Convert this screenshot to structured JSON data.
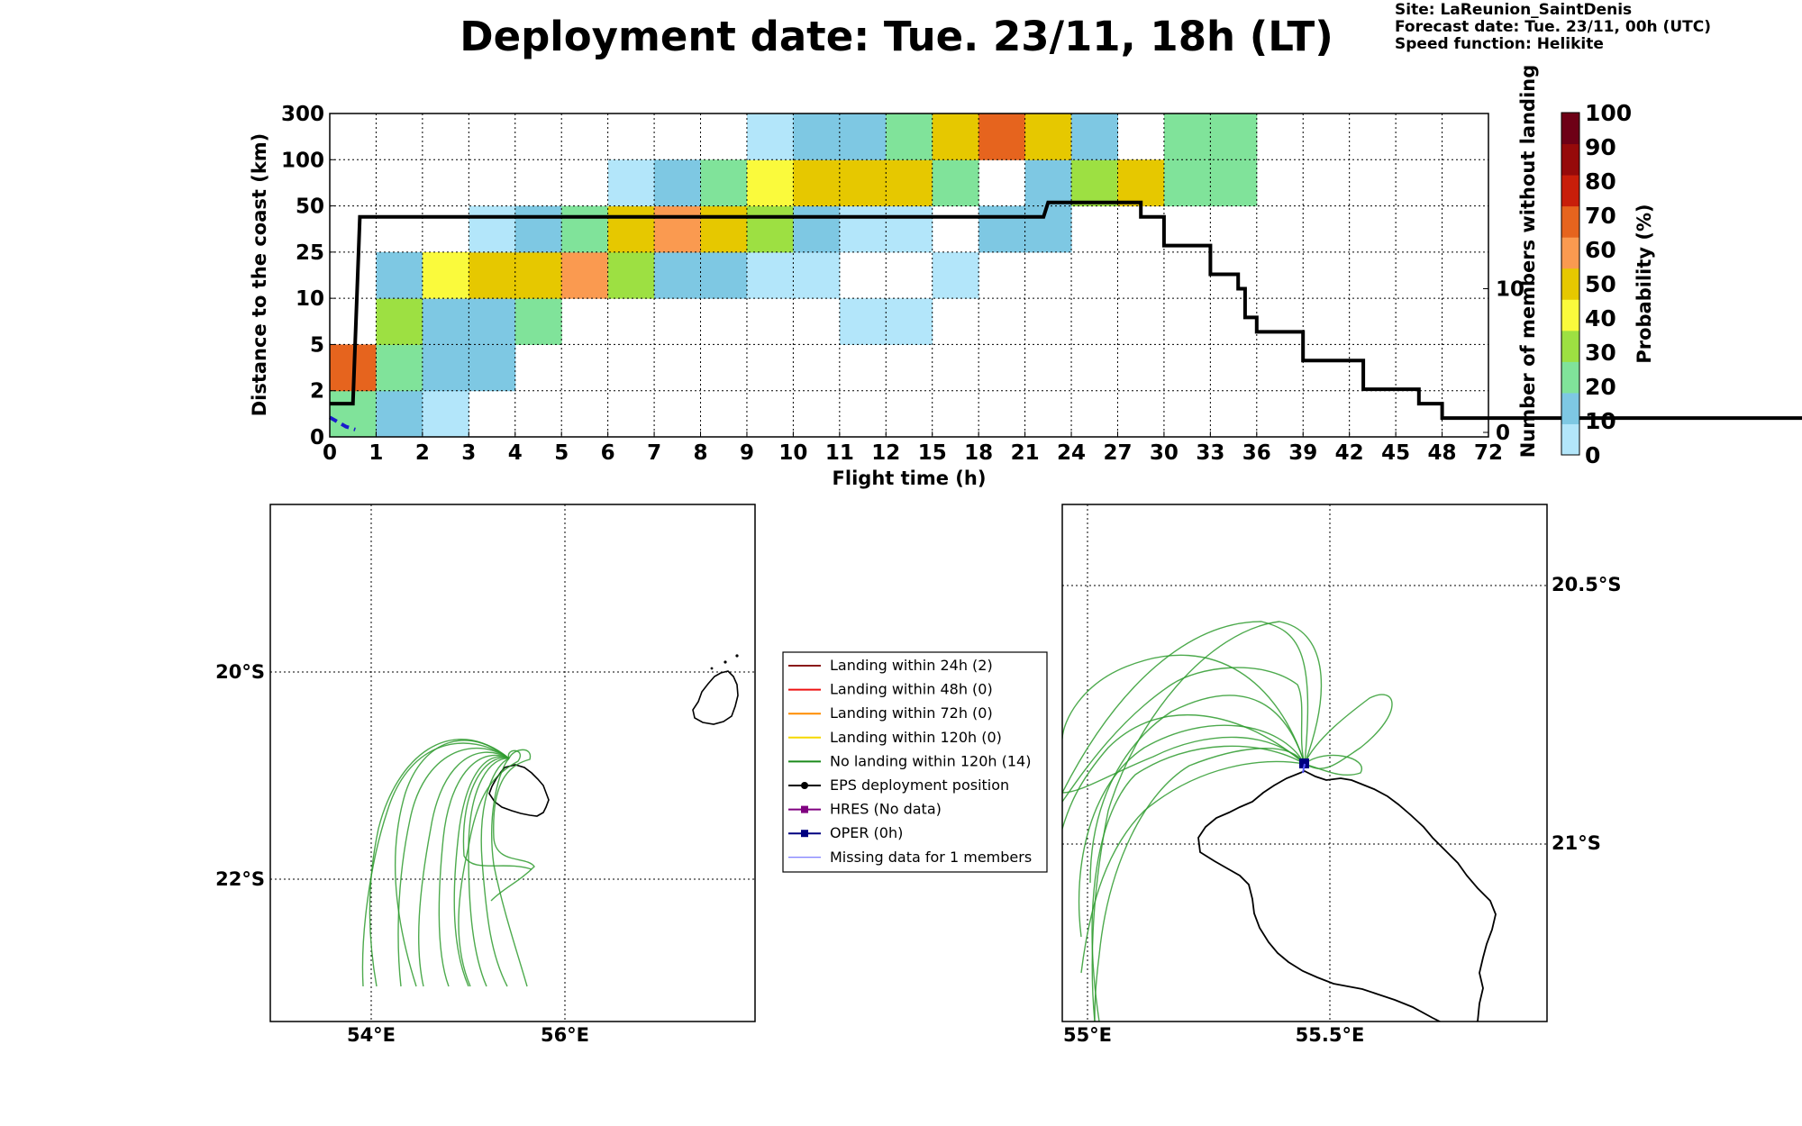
{
  "title": "Deployment date: Tue. 23/11, 18h (LT)",
  "meta": {
    "site": "Site: LaReunion_SaintDenis",
    "forecast": "Forecast date: Tue. 23/11, 00h (UTC)",
    "speed": "Speed function: Helikite"
  },
  "chart_data": [
    {
      "type": "heatmap",
      "xlabel": "Flight time (h)",
      "ylabel": "Distance to the coast (km)",
      "y2label": "Number of members without landing",
      "x_ticks": [
        "0",
        "1",
        "2",
        "3",
        "4",
        "5",
        "6",
        "7",
        "8",
        "9",
        "10",
        "11",
        "12",
        "15",
        "18",
        "21",
        "24",
        "27",
        "30",
        "33",
        "36",
        "39",
        "42",
        "45",
        "48",
        "72"
      ],
      "y_ticks": [
        "0",
        "2",
        "5",
        "10",
        "25",
        "50",
        "100",
        "300"
      ],
      "y2_ticks": [
        "0",
        "10"
      ],
      "y2_range": [
        0,
        20
      ],
      "grid": true,
      "colorbar": {
        "label": "Probability (%)",
        "ticks": [
          "0",
          "10",
          "20",
          "30",
          "40",
          "50",
          "60",
          "70",
          "80",
          "90",
          "100"
        ],
        "colors": [
          "#b3e6fa",
          "#7ec8e3",
          "#80e39a",
          "#9de042",
          "#fafa3c",
          "#e6c800",
          "#fa9a50",
          "#e6641e",
          "#c81e0a",
          "#960a0a",
          "#6e0016"
        ]
      },
      "cells": [
        {
          "x": 0,
          "y": 0,
          "v": 20
        },
        {
          "x": 1,
          "y": 0,
          "v": 10
        },
        {
          "x": 2,
          "y": 0,
          "v": 0
        },
        {
          "x": 0,
          "y": 1,
          "v": 70
        },
        {
          "x": 1,
          "y": 1,
          "v": 20
        },
        {
          "x": 2,
          "y": 1,
          "v": 10
        },
        {
          "x": 3,
          "y": 1,
          "v": 10
        },
        {
          "x": 1,
          "y": 2,
          "v": 30
        },
        {
          "x": 2,
          "y": 2,
          "v": 10
        },
        {
          "x": 3,
          "y": 2,
          "v": 10
        },
        {
          "x": 4,
          "y": 2,
          "v": 20
        },
        {
          "x": 11,
          "y": 2,
          "v": 0
        },
        {
          "x": 12,
          "y": 2,
          "v": 0
        },
        {
          "x": 1,
          "y": 3,
          "v": 10
        },
        {
          "x": 2,
          "y": 3,
          "v": 40
        },
        {
          "x": 3,
          "y": 3,
          "v": 50
        },
        {
          "x": 4,
          "y": 3,
          "v": 50
        },
        {
          "x": 5,
          "y": 3,
          "v": 60
        },
        {
          "x": 6,
          "y": 3,
          "v": 30
        },
        {
          "x": 7,
          "y": 3,
          "v": 10
        },
        {
          "x": 8,
          "y": 3,
          "v": 10
        },
        {
          "x": 9,
          "y": 3,
          "v": 0
        },
        {
          "x": 10,
          "y": 3,
          "v": 0
        },
        {
          "x": 13,
          "y": 3,
          "v": 0
        },
        {
          "x": 3,
          "y": 4,
          "v": 0
        },
        {
          "x": 4,
          "y": 4,
          "v": 10
        },
        {
          "x": 5,
          "y": 4,
          "v": 20
        },
        {
          "x": 6,
          "y": 4,
          "v": 50
        },
        {
          "x": 7,
          "y": 4,
          "v": 60
        },
        {
          "x": 8,
          "y": 4,
          "v": 50
        },
        {
          "x": 9,
          "y": 4,
          "v": 30
        },
        {
          "x": 10,
          "y": 4,
          "v": 10
        },
        {
          "x": 11,
          "y": 4,
          "v": 0
        },
        {
          "x": 12,
          "y": 4,
          "v": 0
        },
        {
          "x": 14,
          "y": 4,
          "v": 10
        },
        {
          "x": 15,
          "y": 4,
          "v": 10
        },
        {
          "x": 6,
          "y": 5,
          "v": 0
        },
        {
          "x": 7,
          "y": 5,
          "v": 10
        },
        {
          "x": 8,
          "y": 5,
          "v": 20
        },
        {
          "x": 9,
          "y": 5,
          "v": 40
        },
        {
          "x": 10,
          "y": 5,
          "v": 50
        },
        {
          "x": 11,
          "y": 5,
          "v": 50
        },
        {
          "x": 12,
          "y": 5,
          "v": 50
        },
        {
          "x": 13,
          "y": 5,
          "v": 20
        },
        {
          "x": 15,
          "y": 5,
          "v": 10
        },
        {
          "x": 16,
          "y": 5,
          "v": 30
        },
        {
          "x": 17,
          "y": 5,
          "v": 50
        },
        {
          "x": 18,
          "y": 5,
          "v": 20
        },
        {
          "x": 19,
          "y": 5,
          "v": 20
        },
        {
          "x": 9,
          "y": 6,
          "v": 0
        },
        {
          "x": 10,
          "y": 6,
          "v": 10
        },
        {
          "x": 11,
          "y": 6,
          "v": 10
        },
        {
          "x": 12,
          "y": 6,
          "v": 20
        },
        {
          "x": 13,
          "y": 6,
          "v": 50
        },
        {
          "x": 14,
          "y": 6,
          "v": 70
        },
        {
          "x": 15,
          "y": 6,
          "v": 50
        },
        {
          "x": 16,
          "y": 6,
          "v": 10
        },
        {
          "x": 18,
          "y": 6,
          "v": 20
        },
        {
          "x": 19,
          "y": 6,
          "v": 20
        }
      ],
      "members_line": [
        [
          0,
          2
        ],
        [
          0.5,
          2
        ],
        [
          0.65,
          15
        ],
        [
          15.4,
          15
        ],
        [
          15.5,
          16
        ],
        [
          17.5,
          16
        ],
        [
          17.5,
          15
        ],
        [
          18,
          15
        ],
        [
          18,
          13
        ],
        [
          19,
          13
        ],
        [
          19,
          11
        ],
        [
          19.6,
          11
        ],
        [
          19.6,
          10
        ],
        [
          19.75,
          10
        ],
        [
          19.75,
          8
        ],
        [
          20,
          8
        ],
        [
          20,
          7
        ],
        [
          21,
          7
        ],
        [
          21,
          5
        ],
        [
          22.3,
          5
        ],
        [
          22.3,
          3
        ],
        [
          23.5,
          3
        ],
        [
          23.5,
          2
        ],
        [
          24,
          2
        ],
        [
          24,
          1
        ],
        [
          33,
          1
        ],
        [
          33,
          0
        ],
        [
          72,
          0
        ]
      ],
      "oper_line": [
        [
          0,
          1.05
        ],
        [
          0.35,
          0.4
        ],
        [
          0.55,
          0.2
        ]
      ]
    },
    {
      "type": "map",
      "x_ticks": [
        "54°E",
        "56°E"
      ],
      "y_ticks": [
        "20°S",
        "22°S"
      ],
      "extent": {
        "lon": [
          53,
          58
        ],
        "lat": [
          -23.4,
          -18.4
        ]
      },
      "grid": true
    },
    {
      "type": "map",
      "x_ticks": [
        "55°E",
        "55.5°E"
      ],
      "y_ticks": [
        "20.5°S",
        "21°S"
      ],
      "extent": {
        "lon": [
          54.95,
          55.95
        ],
        "lat": [
          -21.7,
          -20.34
        ]
      },
      "grid": true
    }
  ],
  "legend": [
    {
      "label": "Landing within 24h (2)",
      "color": "#8b1a1a",
      "marker": "none"
    },
    {
      "label": "Landing within 48h (0)",
      "color": "#ee1111",
      "marker": "none"
    },
    {
      "label": "Landing within 72h (0)",
      "color": "#ff8c00",
      "marker": "none"
    },
    {
      "label": "Landing within 120h (0)",
      "color": "#f5d800",
      "marker": "none"
    },
    {
      "label": "No landing within 120h (14)",
      "color": "#1a8a1a",
      "marker": "none"
    },
    {
      "label": "EPS deployment position",
      "color": "#000000",
      "marker": "circle"
    },
    {
      "label": "HRES (No data)",
      "color": "#800080",
      "marker": "square"
    },
    {
      "label": "OPER (0h)",
      "color": "#000080",
      "marker": "square"
    },
    {
      "label": "Missing data for 1 members",
      "color": "#5a5aff",
      "marker": "thin"
    }
  ]
}
